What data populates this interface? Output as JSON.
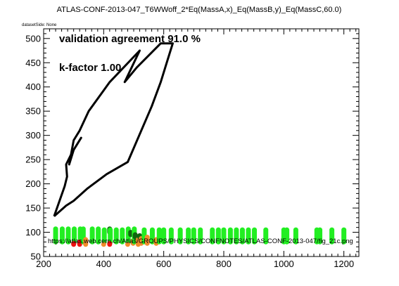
{
  "chart_data": {
    "type": "scatter",
    "title": "ATLAS-CONF-2013-047_T6WWoff_2*Eq(MassA,x)_Eq(MassB,y)_Eq(MassC,60.0)",
    "subtitle": "datasetSide: None",
    "xlabel": "",
    "ylabel": "",
    "xlim": [
      200,
      1250
    ],
    "ylim": [
      50,
      520
    ],
    "xticks": [
      200,
      400,
      600,
      800,
      1000,
      1200
    ],
    "yticks": [
      50,
      100,
      150,
      200,
      250,
      300,
      350,
      400,
      450,
      500
    ],
    "grid": false,
    "annotations": {
      "agreement": "validation agreement 91.0 %",
      "kfactor": "k-factor 1.00",
      "url": "https://atlas.web.cern.ch/Atlas/GROUPS/PHYSICS/CONFNOTES/ATLAS-CONF-2013-047/fig_21c.png"
    },
    "colors": {
      "light_green": "#22ee22",
      "dark_green": "#116611",
      "orange": "#f28c2c",
      "red": "#ee1111",
      "contour": "#000000"
    },
    "contour": {
      "x": [
        235,
        270,
        278,
        275,
        295,
        325,
        300,
        285,
        300,
        320,
        350,
        420,
        520,
        470,
        510,
        590,
        630,
        610,
        590,
        560,
        480,
        410,
        345,
        300,
        275,
        235
      ],
      "y": [
        133,
        195,
        215,
        240,
        265,
        295,
        270,
        240,
        290,
        310,
        350,
        410,
        475,
        410,
        440,
        490,
        490,
        450,
        410,
        360,
        245,
        220,
        190,
        165,
        155,
        133
      ]
    },
    "point_columns": [
      {
        "x": 240,
        "color": "light_green",
        "y": [
          75,
          112
        ]
      },
      {
        "x": 262,
        "color": "light_green",
        "y": [
          75,
          112
        ]
      },
      {
        "x": 282,
        "color": "light_green",
        "y": [
          75,
          112
        ]
      },
      {
        "x": 302,
        "color": "light_green",
        "y": [
          75,
          112
        ]
      },
      {
        "x": 300,
        "color": "red",
        "y": [
          70,
          82
        ]
      },
      {
        "x": 322,
        "color": "light_green",
        "y": [
          75,
          112
        ]
      },
      {
        "x": 320,
        "color": "red",
        "y": [
          70,
          85
        ]
      },
      {
        "x": 332,
        "color": "light_green",
        "y": [
          75,
          112
        ]
      },
      {
        "x": 340,
        "color": "orange",
        "y": [
          70,
          90
        ]
      },
      {
        "x": 362,
        "color": "light_green",
        "y": [
          75,
          112
        ]
      },
      {
        "x": 382,
        "color": "light_green",
        "y": [
          75,
          112
        ]
      },
      {
        "x": 402,
        "color": "light_green",
        "y": [
          75,
          110
        ]
      },
      {
        "x": 400,
        "color": "orange",
        "y": [
          70,
          80
        ]
      },
      {
        "x": 420,
        "color": "dark_green",
        "y": [
          95,
          112
        ]
      },
      {
        "x": 422,
        "color": "light_green",
        "y": [
          75,
          110
        ]
      },
      {
        "x": 420,
        "color": "red",
        "y": [
          70,
          82
        ]
      },
      {
        "x": 442,
        "color": "light_green",
        "y": [
          75,
          110
        ]
      },
      {
        "x": 462,
        "color": "light_green",
        "y": [
          75,
          110
        ]
      },
      {
        "x": 482,
        "color": "light_green",
        "y": [
          75,
          112
        ]
      },
      {
        "x": 480,
        "color": "orange",
        "y": [
          70,
          80
        ]
      },
      {
        "x": 490,
        "color": "dark_green",
        "y": [
          90,
          105
        ]
      },
      {
        "x": 498,
        "color": "orange",
        "y": [
          72,
          88
        ]
      },
      {
        "x": 502,
        "color": "light_green",
        "y": [
          75,
          112
        ]
      },
      {
        "x": 505,
        "color": "dark_green",
        "y": [
          85,
          100
        ]
      },
      {
        "x": 515,
        "color": "orange",
        "y": [
          70,
          90
        ]
      },
      {
        "x": 520,
        "color": "dark_green",
        "y": [
          85,
          98
        ]
      },
      {
        "x": 525,
        "color": "orange",
        "y": [
          72,
          92
        ]
      },
      {
        "x": 535,
        "color": "light_green",
        "y": [
          75,
          110
        ]
      },
      {
        "x": 545,
        "color": "orange",
        "y": [
          72,
          95
        ]
      },
      {
        "x": 562,
        "color": "light_green",
        "y": [
          75,
          110
        ]
      },
      {
        "x": 575,
        "color": "orange",
        "y": [
          72,
          90
        ]
      },
      {
        "x": 585,
        "color": "light_green",
        "y": [
          75,
          110
        ]
      },
      {
        "x": 600,
        "color": "light_green",
        "y": [
          75,
          110
        ]
      },
      {
        "x": 625,
        "color": "light_green",
        "y": [
          75,
          110
        ]
      },
      {
        "x": 655,
        "color": "light_green",
        "y": [
          75,
          110
        ]
      },
      {
        "x": 682,
        "color": "light_green",
        "y": [
          75,
          110
        ]
      },
      {
        "x": 700,
        "color": "light_green",
        "y": [
          75,
          110
        ]
      },
      {
        "x": 722,
        "color": "light_green",
        "y": [
          75,
          110
        ]
      },
      {
        "x": 762,
        "color": "light_green",
        "y": [
          75,
          110
        ]
      },
      {
        "x": 782,
        "color": "light_green",
        "y": [
          75,
          110
        ]
      },
      {
        "x": 800,
        "color": "light_green",
        "y": [
          75,
          110
        ]
      },
      {
        "x": 822,
        "color": "light_green",
        "y": [
          75,
          110
        ]
      },
      {
        "x": 842,
        "color": "light_green",
        "y": [
          75,
          110
        ]
      },
      {
        "x": 862,
        "color": "light_green",
        "y": [
          75,
          110
        ]
      },
      {
        "x": 882,
        "color": "light_green",
        "y": [
          75,
          110
        ]
      },
      {
        "x": 902,
        "color": "light_green",
        "y": [
          75,
          110
        ]
      },
      {
        "x": 940,
        "color": "light_green",
        "y": [
          75,
          110
        ]
      },
      {
        "x": 1000,
        "color": "light_green",
        "y": [
          75,
          110
        ]
      },
      {
        "x": 1010,
        "color": "light_green",
        "y": [
          75,
          110
        ]
      },
      {
        "x": 1040,
        "color": "light_green",
        "y": [
          75,
          110
        ]
      },
      {
        "x": 1110,
        "color": "light_green",
        "y": [
          75,
          110
        ]
      },
      {
        "x": 1120,
        "color": "light_green",
        "y": [
          75,
          110
        ]
      },
      {
        "x": 1160,
        "color": "light_green",
        "y": [
          75,
          110
        ]
      },
      {
        "x": 1200,
        "color": "light_green",
        "y": [
          75,
          110
        ]
      }
    ]
  }
}
